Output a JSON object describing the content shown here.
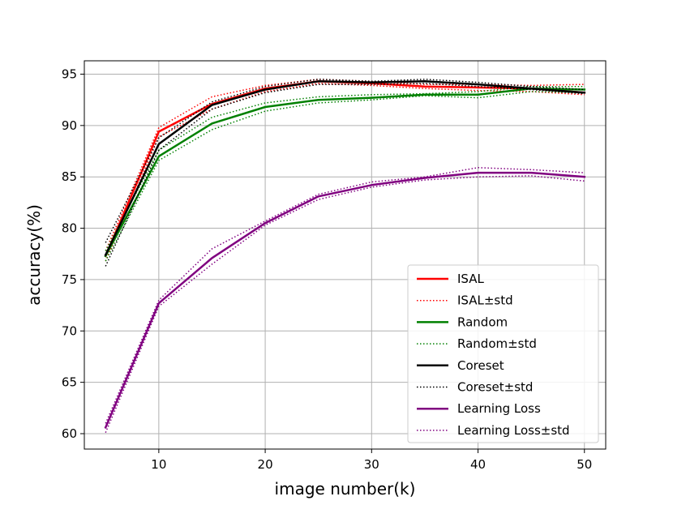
{
  "chart_data": {
    "type": "line",
    "xlabel": "image number(k)",
    "ylabel": "accuracy(%)",
    "xlim": [
      3.0,
      52.0
    ],
    "ylim": [
      58.5,
      96.3
    ],
    "xticks": [
      10,
      20,
      30,
      40,
      50
    ],
    "yticks": [
      60,
      65,
      70,
      75,
      80,
      85,
      90,
      95
    ],
    "grid": true,
    "legend_position": "lower right",
    "x": [
      5,
      10,
      15,
      20,
      25,
      30,
      35,
      40,
      45,
      50
    ],
    "series": [
      {
        "name": "ISAL",
        "color": "#ff0000",
        "style": "solid",
        "values": [
          77.3,
          89.4,
          92.1,
          93.6,
          94.3,
          94.1,
          93.8,
          93.7,
          93.6,
          93.2
        ]
      },
      {
        "name": "ISAL±std",
        "color": "#ff0000",
        "style": "dotted",
        "upper": [
          77.8,
          89.8,
          92.8,
          93.9,
          94.5,
          94.3,
          94.0,
          94.0,
          93.9,
          94.0
        ],
        "lower": [
          76.8,
          88.9,
          91.6,
          93.3,
          94.1,
          93.9,
          93.6,
          93.4,
          93.3,
          93.0
        ]
      },
      {
        "name": "Random",
        "color": "#008000",
        "style": "solid",
        "values": [
          77.3,
          87.0,
          90.2,
          91.8,
          92.5,
          92.7,
          93.0,
          93.0,
          93.6,
          93.5
        ]
      },
      {
        "name": "Random±std",
        "color": "#008000",
        "style": "dotted",
        "upper": [
          77.8,
          87.6,
          90.8,
          92.2,
          92.8,
          93.0,
          93.1,
          93.3,
          93.8,
          93.8
        ],
        "lower": [
          76.8,
          86.6,
          89.6,
          91.4,
          92.2,
          92.5,
          92.9,
          92.7,
          93.3,
          93.2
        ]
      },
      {
        "name": "Coreset",
        "color": "#000000",
        "style": "solid",
        "values": [
          77.4,
          88.2,
          92.0,
          93.5,
          94.3,
          94.2,
          94.3,
          94.0,
          93.6,
          93.2
        ]
      },
      {
        "name": "Coreset±std",
        "color": "#000000",
        "style": "dotted",
        "upper": [
          78.6,
          88.8,
          92.3,
          93.8,
          94.5,
          94.3,
          94.5,
          94.2,
          93.8,
          93.5
        ],
        "lower": [
          76.3,
          87.6,
          91.6,
          93.2,
          94.0,
          94.0,
          94.1,
          93.8,
          93.5,
          93.1
        ]
      },
      {
        "name": "Learning Loss",
        "color": "#800080",
        "style": "solid",
        "values": [
          60.6,
          72.7,
          77.1,
          80.5,
          83.1,
          84.2,
          84.9,
          85.4,
          85.4,
          85.0
        ]
      },
      {
        "name": "Learning Loss±std",
        "color": "#800080",
        "style": "dotted",
        "upper": [
          61.0,
          73.0,
          78.0,
          80.7,
          83.3,
          84.5,
          85.0,
          85.9,
          85.7,
          85.4
        ],
        "lower": [
          60.1,
          72.4,
          76.5,
          80.3,
          82.8,
          84.0,
          84.7,
          85.0,
          85.1,
          84.6
        ]
      }
    ]
  }
}
